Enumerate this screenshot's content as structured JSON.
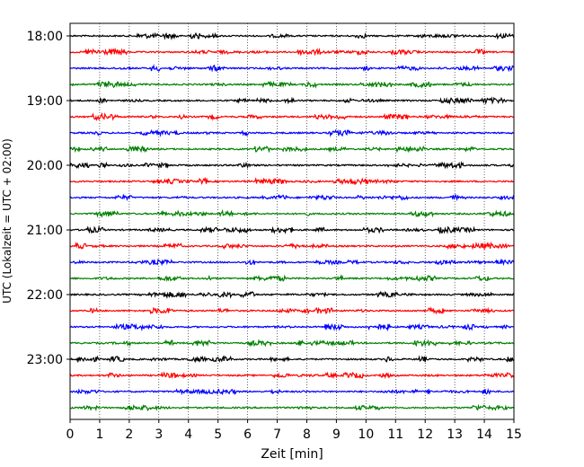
{
  "chart_data": {
    "type": "line",
    "title": "",
    "xlabel": "Zeit  [min]",
    "ylabel": "UTC (Lokalzeit = UTC + 02:00)",
    "xlim": [
      0,
      15
    ],
    "x_ticks": [
      "0",
      "1",
      "2",
      "3",
      "4",
      "5",
      "6",
      "7",
      "8",
      "9",
      "10",
      "11",
      "12",
      "13",
      "14",
      "15"
    ],
    "y_ticks": [
      "18:00",
      "19:00",
      "20:00",
      "21:00",
      "22:00",
      "23:00"
    ],
    "row_start_times": [
      "18:00",
      "18:15",
      "18:30",
      "18:45",
      "19:00",
      "19:15",
      "19:30",
      "19:45",
      "20:00",
      "20:15",
      "20:30",
      "20:45",
      "21:00",
      "21:15",
      "21:30",
      "21:45",
      "22:00",
      "22:15",
      "22:30",
      "22:45",
      "23:00",
      "23:15",
      "23:30",
      "23:45"
    ],
    "row_minutes": 15,
    "colors": [
      "#000000",
      "#ff0000",
      "#0000ff",
      "#008000"
    ],
    "grid": "vertical dotted",
    "legend": "none"
  }
}
